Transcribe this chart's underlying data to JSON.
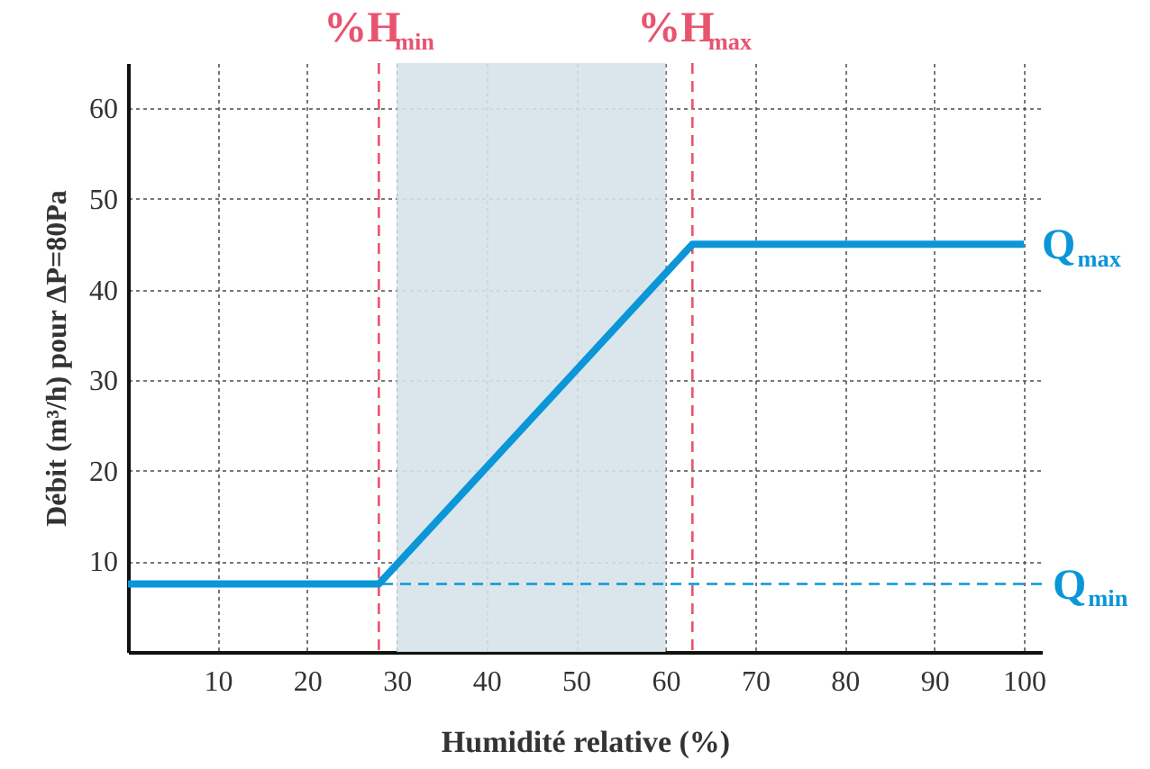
{
  "chart_data": {
    "type": "line",
    "xlabel": "Humidité relative (%)",
    "ylabel": "Débit (m³/h) pour ΔP=80Pa",
    "x": [
      0,
      28,
      63,
      100
    ],
    "series": [
      {
        "color": "#0a96d8",
        "values": [
          7.5,
          7.5,
          45,
          45
        ]
      }
    ],
    "xlim": [
      0,
      102
    ],
    "ylim": [
      0,
      65
    ],
    "xticks": [
      10,
      20,
      30,
      40,
      50,
      60,
      70,
      80,
      90,
      100
    ],
    "yticks": [
      10,
      20,
      30,
      40,
      50,
      60
    ],
    "grid": true,
    "marker": "none",
    "line_style": "solid",
    "bands": [
      {
        "axis": "x",
        "from": 30,
        "to": 60,
        "color": "#d6e3e9"
      }
    ],
    "ref_lines": [
      {
        "axis": "x",
        "value": 28,
        "label": "%H$_{min}$",
        "color": "#e8546f",
        "line_style": "dashed"
      },
      {
        "axis": "x",
        "value": 63,
        "label": "%H$_{max}$",
        "color": "#e8546f",
        "line_style": "dashed"
      },
      {
        "axis": "y",
        "value": 7.5,
        "label": "Q$_{min}$",
        "color": "#0a96d8",
        "line_style": "dashed"
      }
    ],
    "annotations": [
      {
        "text": "Q$_{max}$",
        "x": 100,
        "y": 45
      }
    ]
  }
}
